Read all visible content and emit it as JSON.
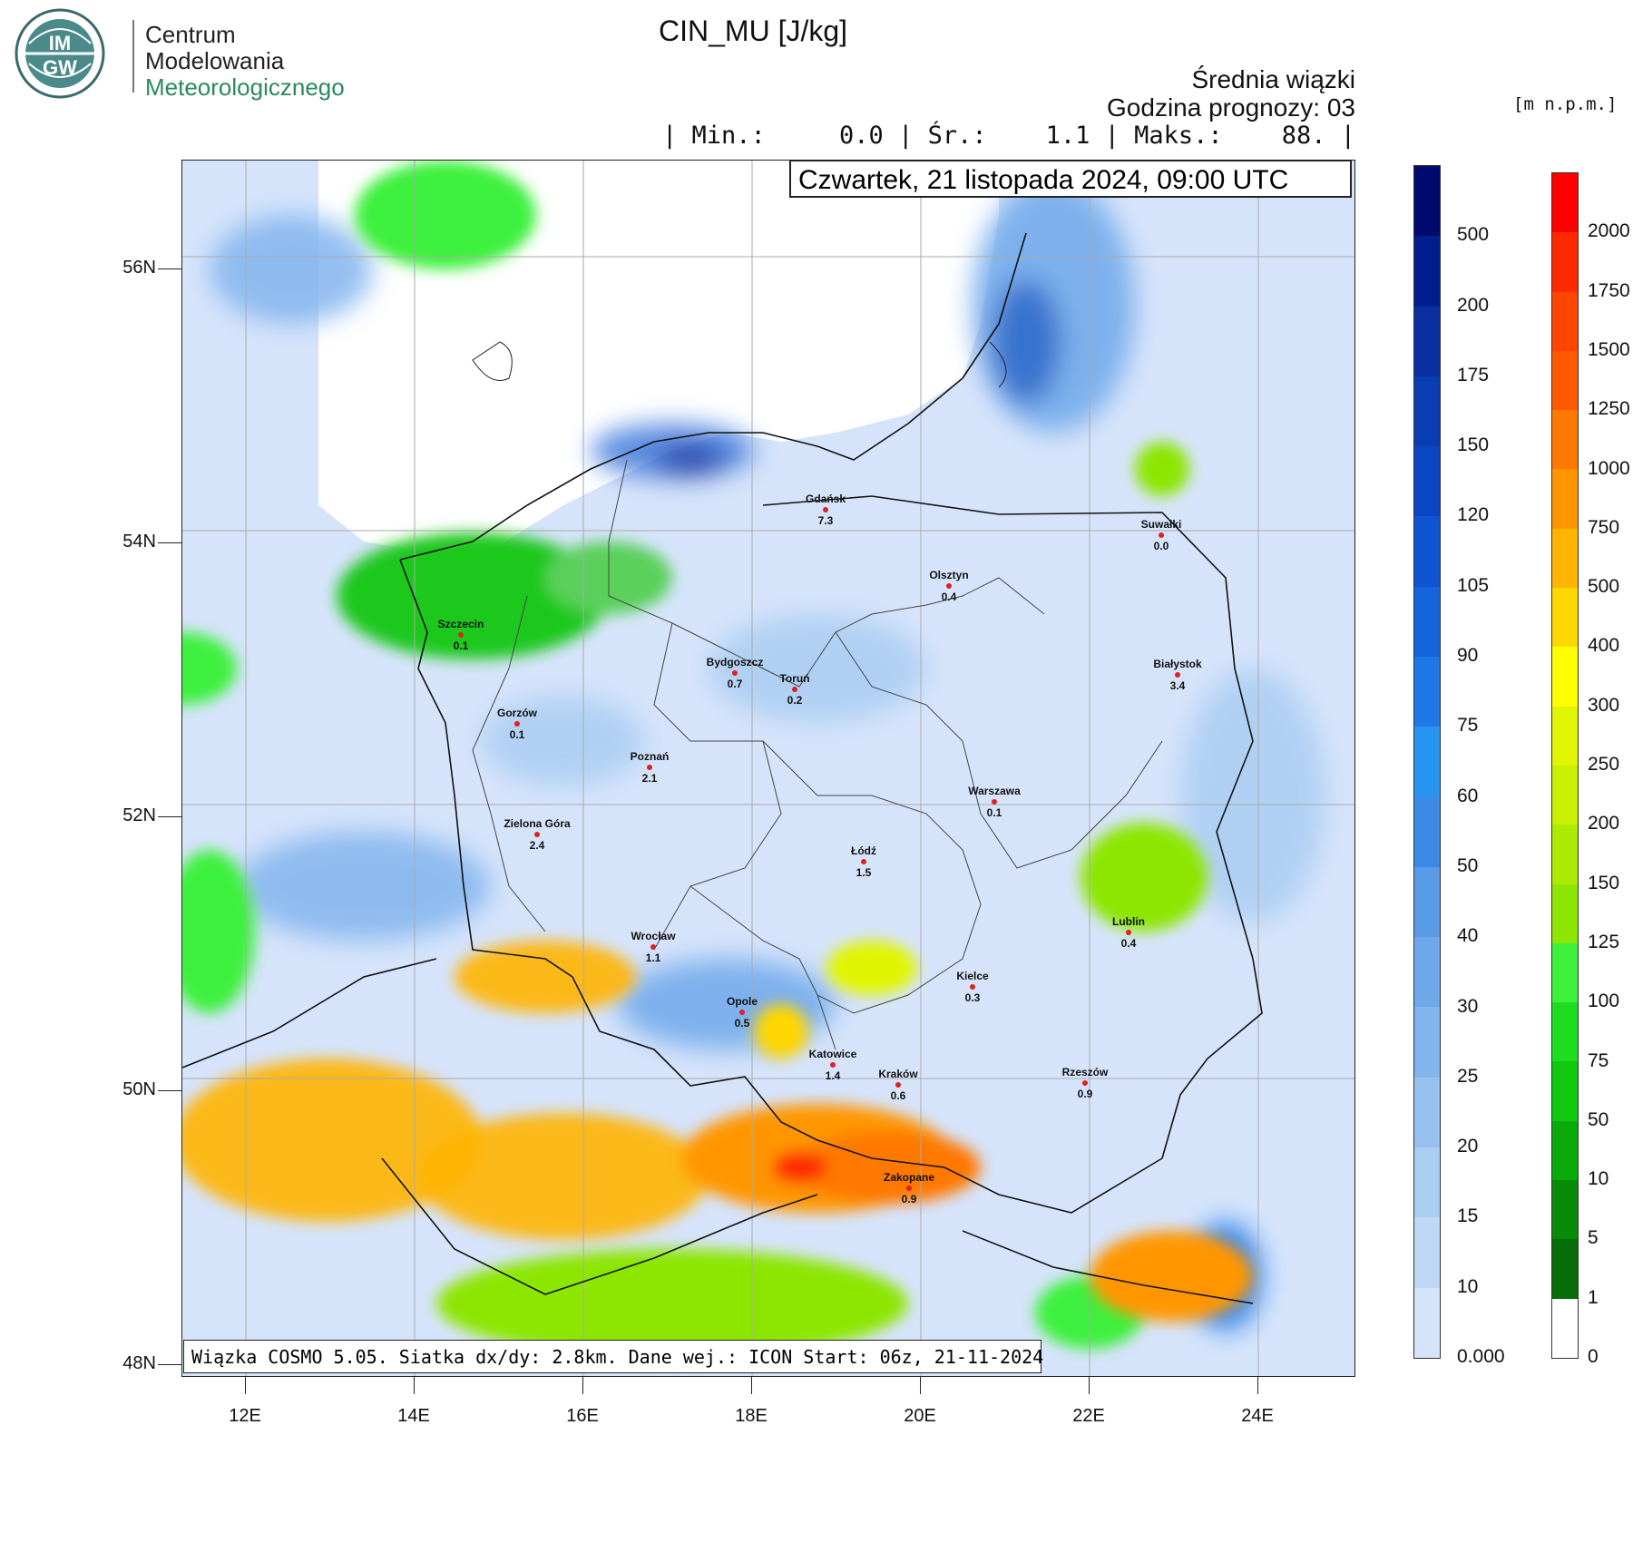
{
  "logo": {
    "line1": "Centrum",
    "line2": "Modelowania",
    "line3": "Meteorologicznego",
    "emblem_text_top": "IM",
    "emblem_text_bottom": "GW"
  },
  "title": "CIN_MU [J/kg]",
  "subtitle": "Średnia wiązki",
  "forecast_hour": "Godzina prognozy: 03",
  "stats": "| Min.:     0.0 | Śr.:    1.1 | Maks.:    88. |",
  "date": "Czwartek, 21 listopada 2024, 09:00 UTC",
  "footer": "Wiązka COSMO 5.05. Siatka dx/dy: 2.8km. Dane wej.: ICON Start: 06z, 21-11-2024",
  "height_unit": "[m n.p.m.]",
  "lat_labels": [
    "56N",
    "54N",
    "52N",
    "50N",
    "48N"
  ],
  "lon_labels": [
    "12E",
    "14E",
    "16E",
    "18E",
    "20E",
    "22E",
    "24E"
  ],
  "cities": [
    {
      "name": "Gdańsk",
      "value": "7.3"
    },
    {
      "name": "Suwałki",
      "value": "0.0"
    },
    {
      "name": "Olsztyn",
      "value": "0.4"
    },
    {
      "name": "Szczecin",
      "value": "0.1"
    },
    {
      "name": "Bydgoszcz",
      "value": "0.7"
    },
    {
      "name": "Toruń",
      "value": "0.2"
    },
    {
      "name": "Białystok",
      "value": "3.4"
    },
    {
      "name": "Gorzów",
      "value": "0.1"
    },
    {
      "name": "Poznań",
      "value": "2.1"
    },
    {
      "name": "Warszawa",
      "value": "0.1"
    },
    {
      "name": "Zielona Góra",
      "value": "2.4"
    },
    {
      "name": "Łódź",
      "value": "1.5"
    },
    {
      "name": "Lublin",
      "value": "0.4"
    },
    {
      "name": "Wrocław",
      "value": "1.1"
    },
    {
      "name": "Kielce",
      "value": "0.3"
    },
    {
      "name": "Opole",
      "value": "0.5"
    },
    {
      "name": "Katowice",
      "value": "1.4"
    },
    {
      "name": "Kraków",
      "value": "0.6"
    },
    {
      "name": "Rzeszów",
      "value": "0.9"
    },
    {
      "name": "Zakopane",
      "value": "0.9"
    }
  ],
  "cin_scale": {
    "labels": [
      "500",
      "200",
      "175",
      "150",
      "120",
      "105",
      "90",
      "75",
      "60",
      "50",
      "40",
      "30",
      "25",
      "20",
      "15",
      "10",
      "0.000"
    ],
    "colors": [
      "#000a6e",
      "#001e8c",
      "#0a2fa0",
      "#0a3cb4",
      "#0a46c3",
      "#0f55d2",
      "#1464dc",
      "#1e78e6",
      "#2896f0",
      "#3c8ae6",
      "#5a9be8",
      "#6ea8ea",
      "#82b4ee",
      "#96c0f0",
      "#aacdf2",
      "#bed8f5",
      "#d6e4fb"
    ]
  },
  "height_scale": {
    "labels": [
      "2000",
      "1750",
      "1500",
      "1250",
      "1000",
      "750",
      "500",
      "400",
      "300",
      "250",
      "200",
      "150",
      "125",
      "100",
      "75",
      "50",
      "10",
      "5",
      "1",
      "0"
    ],
    "colors": [
      "#ff0000",
      "#ff2a00",
      "#ff4600",
      "#ff5a00",
      "#ff7800",
      "#ff9600",
      "#ffb400",
      "#ffd700",
      "#ffff00",
      "#e1f500",
      "#c8f000",
      "#aaeb00",
      "#8ce600",
      "#3cf03c",
      "#1edc1e",
      "#0fc80f",
      "#0aaa0a",
      "#088c08",
      "#066e06",
      "#ffffff"
    ]
  }
}
